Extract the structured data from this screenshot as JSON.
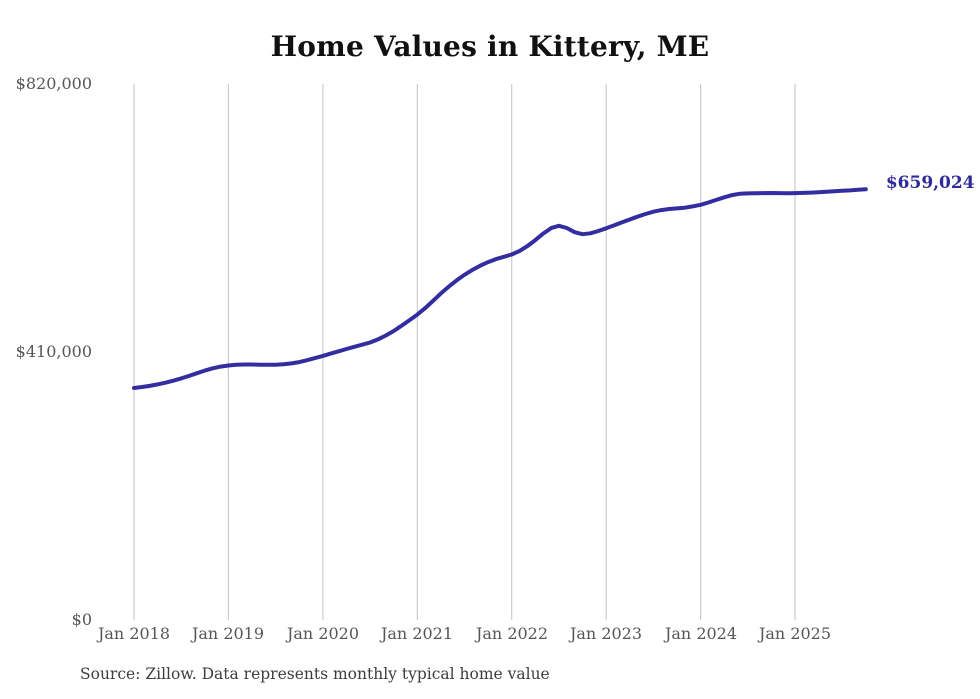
{
  "title": "Home Values in Kittery, ME",
  "source_note": "Source: Zillow. Data represents monthly typical home value",
  "colors": {
    "line": "#332e9f",
    "value_label": "#2f2a99",
    "grid": "#cccccc",
    "tick_text": "#565656",
    "title_text": "#111111",
    "source_text": "#3d3d3d",
    "background": "#ffffff"
  },
  "chart_data": {
    "type": "line",
    "title": "Home Values in Kittery, ME",
    "series_name": "Monthly typical home value (USD)",
    "frequency": "monthly",
    "x_start": "Jan 2018",
    "x_end": "Oct 2025",
    "x_ticks": [
      "Jan 2018",
      "Jan 2019",
      "Jan 2020",
      "Jan 2021",
      "Jan 2022",
      "Jan 2023",
      "Jan 2024",
      "Jan 2025"
    ],
    "y_ticks": [
      {
        "label": "$0",
        "value": 0
      },
      {
        "label": "$410,000",
        "value": 410000
      },
      {
        "label": "$820,000",
        "value": 820000
      }
    ],
    "ylim": [
      0,
      820000
    ],
    "grid": "vertical-only",
    "legend": "none",
    "last_value": 659024,
    "last_value_label": "$659,024",
    "values": [
      355000,
      356400,
      358100,
      360400,
      363000,
      366100,
      369600,
      373500,
      377600,
      381600,
      385100,
      387600,
      389300,
      390400,
      390900,
      390900,
      390600,
      390400,
      390600,
      391300,
      392600,
      394600,
      397500,
      400700,
      404000,
      407500,
      411000,
      414600,
      417900,
      421100,
      424600,
      429200,
      435200,
      442200,
      450200,
      458600,
      467200,
      477200,
      488200,
      499600,
      510100,
      519600,
      528100,
      535600,
      542100,
      547600,
      552100,
      555700,
      559200,
      564700,
      572200,
      581200,
      591100,
      599600,
      603100,
      599700,
      593200,
      590200,
      591600,
      595100,
      599200,
      603700,
      608200,
      612700,
      617100,
      621100,
      624600,
      627100,
      628700,
      629700,
      630700,
      632700,
      635200,
      638700,
      642700,
      646700,
      650100,
      652100,
      652600,
      652900,
      653100,
      653300,
      653100,
      652900,
      653100,
      653400,
      653900,
      654400,
      655100,
      655900,
      656600,
      657300,
      658100,
      659024
    ]
  }
}
